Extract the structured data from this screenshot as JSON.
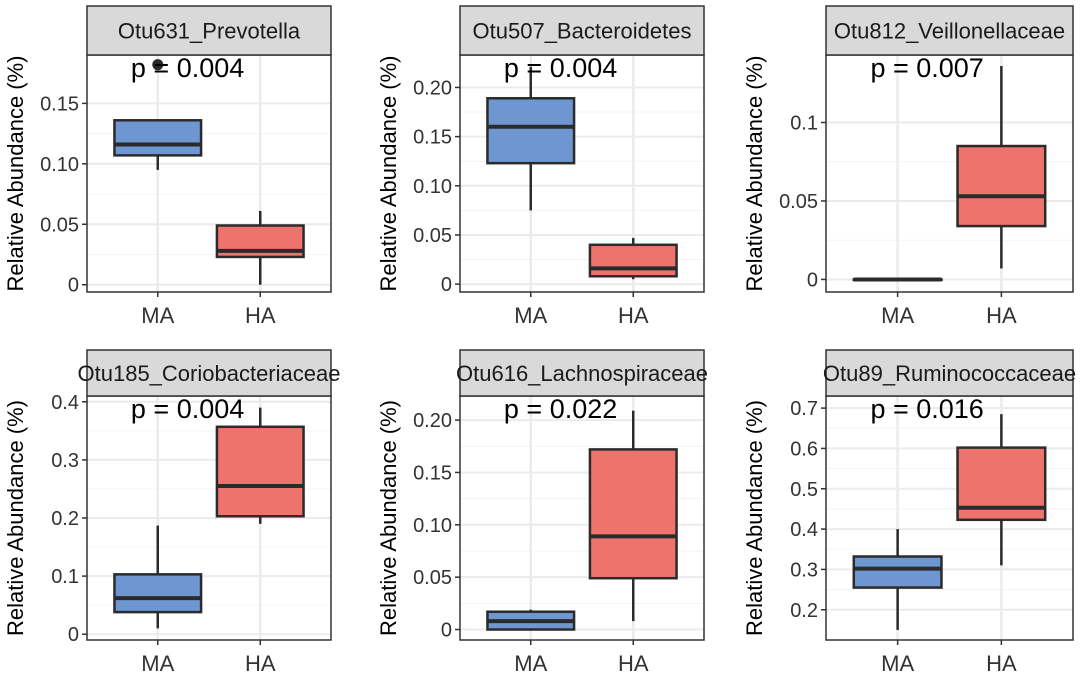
{
  "colors": {
    "MA": "#6e96d0",
    "HA": "#ee736d",
    "strip_bg": "#d9d9d9",
    "grid": "#ebebeb",
    "line": "#2b2b2b"
  },
  "chart_data": [
    {
      "type": "boxplot",
      "title": "Otu631_Prevotella",
      "ylabel": "Relative Abundance (%)",
      "xlabel": "",
      "categories": [
        "MA",
        "HA"
      ],
      "annotation": "p = 0.004",
      "ylim": [
        -0.006,
        0.19
      ],
      "yticks": [
        0,
        0.05,
        0.1,
        0.15
      ],
      "ytick_labels": [
        "0",
        "0.05",
        "0.10",
        "0.15"
      ],
      "boxes": [
        {
          "group": "MA",
          "whisker_low": 0.095,
          "q1": 0.107,
          "median": 0.116,
          "q3": 0.136,
          "whisker_high": 0.136,
          "outliers": [
            0.182
          ]
        },
        {
          "group": "HA",
          "whisker_low": 0.0,
          "q1": 0.023,
          "median": 0.028,
          "q3": 0.049,
          "whisker_high": 0.061,
          "outliers": []
        }
      ]
    },
    {
      "type": "boxplot",
      "title": "Otu507_Bacteroidetes",
      "ylabel": "Relative Abundance (%)",
      "xlabel": "",
      "categories": [
        "MA",
        "HA"
      ],
      "annotation": "p = 0.004",
      "ylim": [
        -0.008,
        0.233
      ],
      "yticks": [
        0,
        0.05,
        0.1,
        0.15,
        0.2
      ],
      "ytick_labels": [
        "0",
        "0.05",
        "0.10",
        "0.15",
        "0.20"
      ],
      "boxes": [
        {
          "group": "MA",
          "whisker_low": 0.075,
          "q1": 0.123,
          "median": 0.16,
          "q3": 0.189,
          "whisker_high": 0.221,
          "outliers": []
        },
        {
          "group": "HA",
          "whisker_low": 0.005,
          "q1": 0.008,
          "median": 0.016,
          "q3": 0.04,
          "whisker_high": 0.047,
          "outliers": []
        }
      ]
    },
    {
      "type": "boxplot",
      "title": "Otu812_Veillonellaceae",
      "ylabel": "Relative Abundance (%)",
      "xlabel": "",
      "categories": [
        "MA",
        "HA"
      ],
      "annotation": "p = 0.007",
      "ylim": [
        -0.008,
        0.143
      ],
      "yticks": [
        0,
        0.05,
        0.1
      ],
      "ytick_labels": [
        "0",
        "0.05",
        "0.1"
      ],
      "boxes": [
        {
          "group": "MA",
          "whisker_low": 0.0,
          "q1": 0.0,
          "median": 0.0,
          "q3": 0.0,
          "whisker_high": 0.0,
          "outliers": []
        },
        {
          "group": "HA",
          "whisker_low": 0.007,
          "q1": 0.034,
          "median": 0.053,
          "q3": 0.085,
          "whisker_high": 0.136,
          "outliers": []
        }
      ]
    },
    {
      "type": "boxplot",
      "title": "Otu185_Coriobacteriaceae",
      "ylabel": "Relative Abundance (%)",
      "xlabel": "",
      "categories": [
        "MA",
        "HA"
      ],
      "annotation": "p = 0.004",
      "ylim": [
        -0.01,
        0.41
      ],
      "yticks": [
        0,
        0.1,
        0.2,
        0.3,
        0.4
      ],
      "ytick_labels": [
        "0",
        "0.1",
        "0.2",
        "0.3",
        "0.4"
      ],
      "boxes": [
        {
          "group": "MA",
          "whisker_low": 0.01,
          "q1": 0.038,
          "median": 0.062,
          "q3": 0.103,
          "whisker_high": 0.187,
          "outliers": []
        },
        {
          "group": "HA",
          "whisker_low": 0.19,
          "q1": 0.203,
          "median": 0.255,
          "q3": 0.357,
          "whisker_high": 0.39,
          "outliers": []
        }
      ]
    },
    {
      "type": "boxplot",
      "title": "Otu616_Lachnospiraceae",
      "ylabel": "Relative Abundance (%)",
      "xlabel": "",
      "categories": [
        "MA",
        "HA"
      ],
      "annotation": "p = 0.022",
      "ylim": [
        -0.01,
        0.223
      ],
      "yticks": [
        0,
        0.05,
        0.1,
        0.15,
        0.2
      ],
      "ytick_labels": [
        "0",
        "0.05",
        "0.10",
        "0.15",
        "0.20"
      ],
      "boxes": [
        {
          "group": "MA",
          "whisker_low": 0.0,
          "q1": 0.0,
          "median": 0.008,
          "q3": 0.017,
          "whisker_high": 0.019,
          "outliers": []
        },
        {
          "group": "HA",
          "whisker_low": 0.008,
          "q1": 0.049,
          "median": 0.089,
          "q3": 0.172,
          "whisker_high": 0.209,
          "outliers": []
        }
      ]
    },
    {
      "type": "boxplot",
      "title": "Otu89_Ruminococcaceae",
      "ylabel": "Relative Abundance (%)",
      "xlabel": "",
      "categories": [
        "MA",
        "HA"
      ],
      "annotation": "p = 0.016",
      "ylim": [
        0.125,
        0.73
      ],
      "yticks": [
        0.2,
        0.3,
        0.4,
        0.5,
        0.6,
        0.7
      ],
      "ytick_labels": [
        "0.2",
        "0.3",
        "0.4",
        "0.5",
        "0.6",
        "0.7"
      ],
      "boxes": [
        {
          "group": "MA",
          "whisker_low": 0.15,
          "q1": 0.255,
          "median": 0.302,
          "q3": 0.332,
          "whisker_high": 0.4,
          "outliers": []
        },
        {
          "group": "HA",
          "whisker_low": 0.31,
          "q1": 0.423,
          "median": 0.453,
          "q3": 0.602,
          "whisker_high": 0.685,
          "outliers": []
        }
      ]
    }
  ]
}
